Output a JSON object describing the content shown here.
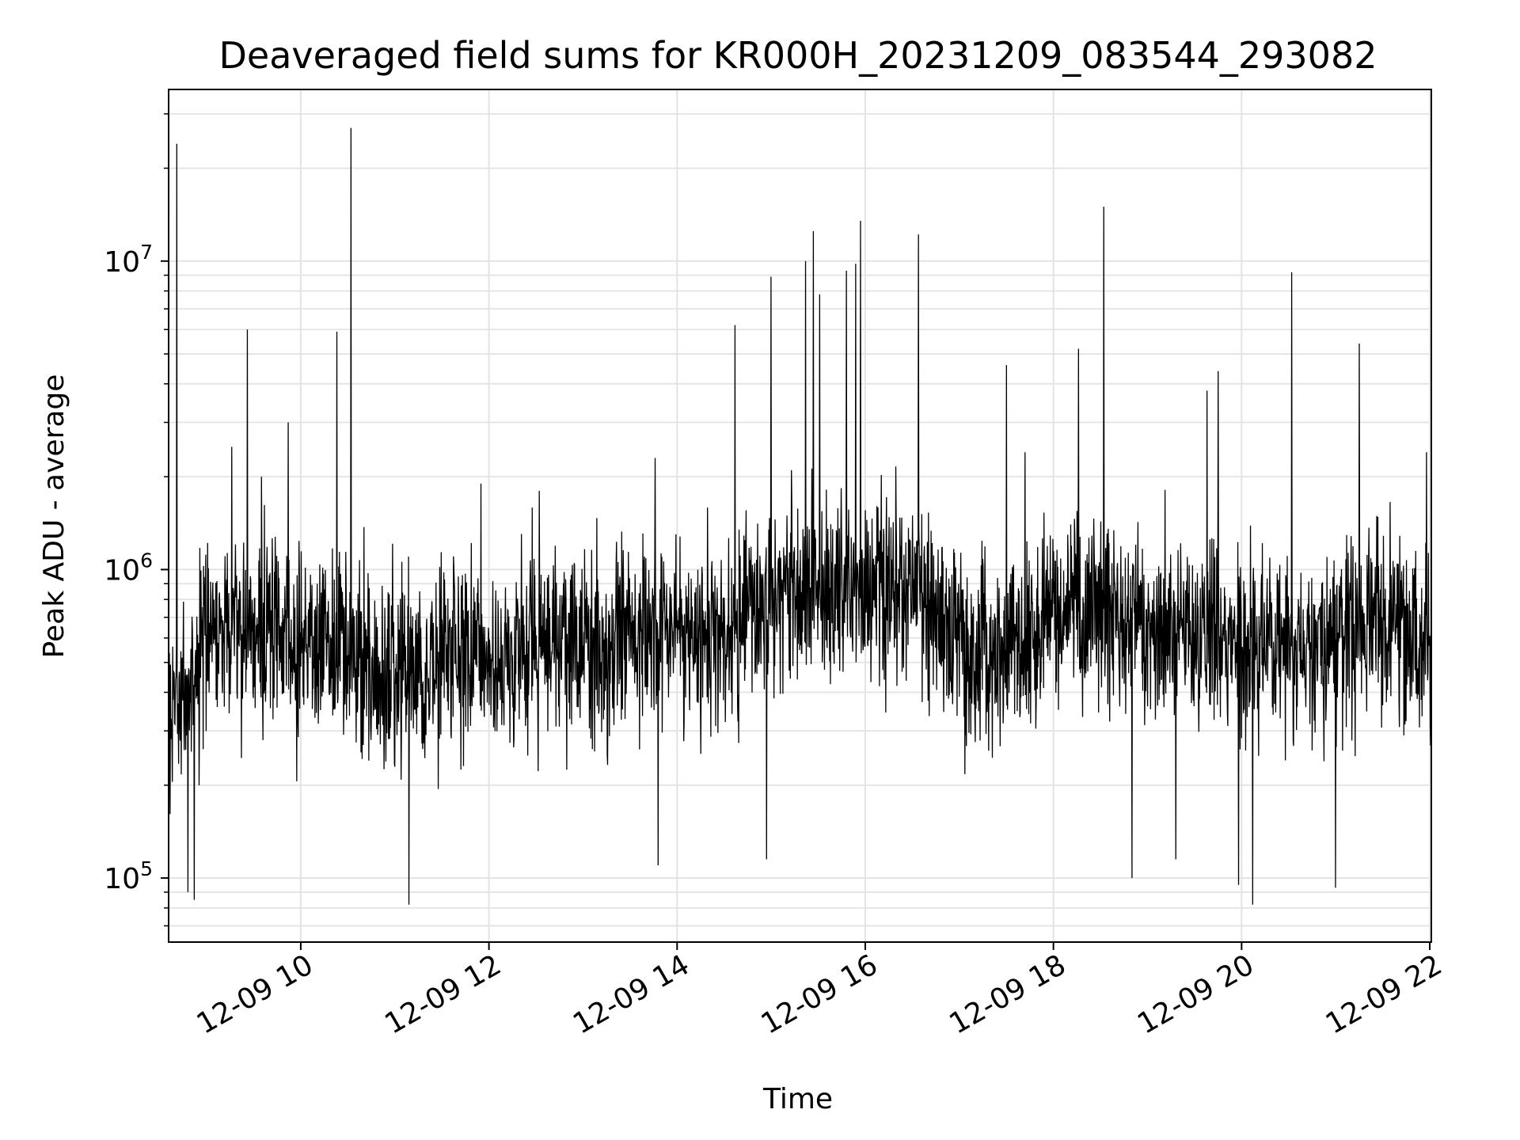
{
  "chart_data": {
    "type": "line",
    "title": "Deaveraged field sums for KR000H_20231209_083544_293082",
    "xlabel": "Time",
    "ylabel": "Peak ADU - average",
    "x_axis": {
      "type": "time",
      "start": "2023-12-09T08:35:44",
      "end": "2023-12-09T22:01:00",
      "ticks": [
        "2023-12-09T10:00",
        "2023-12-09T12:00",
        "2023-12-09T14:00",
        "2023-12-09T16:00",
        "2023-12-09T18:00",
        "2023-12-09T20:00",
        "2023-12-09T22:00"
      ],
      "tick_labels": [
        "12-09 10",
        "12-09 12",
        "12-09 14",
        "12-09 16",
        "12-09 18",
        "12-09 20",
        "12-09 22"
      ]
    },
    "y_axis": {
      "scale": "log",
      "range": [
        62000,
        36000000
      ],
      "ticks": [
        100000,
        1000000,
        10000000
      ],
      "tick_labels": [
        {
          "base": "10",
          "exp": "5"
        },
        {
          "base": "10",
          "exp": "6"
        },
        {
          "base": "10",
          "exp": "7"
        }
      ]
    },
    "grid": true,
    "line_color": "#000000",
    "series": [
      {
        "baseline": [
          [
            "2023-12-09T08:35",
            300000
          ],
          [
            "2023-12-09T09:00",
            620000
          ],
          [
            "2023-12-09T09:30",
            650000
          ],
          [
            "2023-12-09T10:00",
            560000
          ],
          [
            "2023-12-09T10:30",
            520000
          ],
          [
            "2023-12-09T11:00",
            470000
          ],
          [
            "2023-12-09T12:00",
            520000
          ],
          [
            "2023-12-09T13:00",
            560000
          ],
          [
            "2023-12-09T14:00",
            620000
          ],
          [
            "2023-12-09T14:35",
            650000
          ],
          [
            "2023-12-09T15:00",
            820000
          ],
          [
            "2023-12-09T16:00",
            900000
          ],
          [
            "2023-12-09T16:40",
            820000
          ],
          [
            "2023-12-09T17:00",
            560000
          ],
          [
            "2023-12-09T17:30",
            560000
          ],
          [
            "2023-12-09T18:00",
            750000
          ],
          [
            "2023-12-09T19:00",
            650000
          ],
          [
            "2023-12-09T20:00",
            560000
          ],
          [
            "2023-12-09T21:00",
            560000
          ],
          [
            "2023-12-09T21:10",
            720000
          ],
          [
            "2023-12-09T21:40",
            700000
          ],
          [
            "2023-12-09T22:01",
            480000
          ]
        ],
        "spikes": [
          [
            "2023-12-09T08:41",
            24000000
          ],
          [
            "2023-12-09T08:48",
            90000
          ],
          [
            "2023-12-09T08:52",
            85000
          ],
          [
            "2023-12-09T09:16",
            2500000
          ],
          [
            "2023-12-09T09:26",
            6000000
          ],
          [
            "2023-12-09T09:35",
            2000000
          ],
          [
            "2023-12-09T09:52",
            3000000
          ],
          [
            "2023-12-09T10:23",
            5900000
          ],
          [
            "2023-12-09T10:32",
            27000000
          ],
          [
            "2023-12-09T11:09",
            82000
          ],
          [
            "2023-12-09T11:55",
            1900000
          ],
          [
            "2023-12-09T12:32",
            1800000
          ],
          [
            "2023-12-09T13:46",
            2300000
          ],
          [
            "2023-12-09T13:48",
            110000
          ],
          [
            "2023-12-09T14:37",
            6200000
          ],
          [
            "2023-12-09T14:57",
            115000
          ],
          [
            "2023-12-09T15:00",
            8900000
          ],
          [
            "2023-12-09T15:13",
            2100000
          ],
          [
            "2023-12-09T15:22",
            10000000
          ],
          [
            "2023-12-09T15:27",
            12500000
          ],
          [
            "2023-12-09T15:31",
            7800000
          ],
          [
            "2023-12-09T15:48",
            9300000
          ],
          [
            "2023-12-09T15:54",
            9800000
          ],
          [
            "2023-12-09T15:57",
            13500000
          ],
          [
            "2023-12-09T16:34",
            12200000
          ],
          [
            "2023-12-09T17:30",
            4600000
          ],
          [
            "2023-12-09T17:42",
            2400000
          ],
          [
            "2023-12-09T18:16",
            5200000
          ],
          [
            "2023-12-09T18:32",
            15000000
          ],
          [
            "2023-12-09T18:50",
            100000
          ],
          [
            "2023-12-09T19:18",
            115000
          ],
          [
            "2023-12-09T19:38",
            3800000
          ],
          [
            "2023-12-09T19:45",
            4400000
          ],
          [
            "2023-12-09T19:58",
            95000
          ],
          [
            "2023-12-09T20:07",
            82000
          ],
          [
            "2023-12-09T20:32",
            9200000
          ],
          [
            "2023-12-09T21:00",
            93000
          ],
          [
            "2023-12-09T21:15",
            5400000
          ],
          [
            "2023-12-09T21:58",
            2400000
          ]
        ]
      }
    ]
  }
}
